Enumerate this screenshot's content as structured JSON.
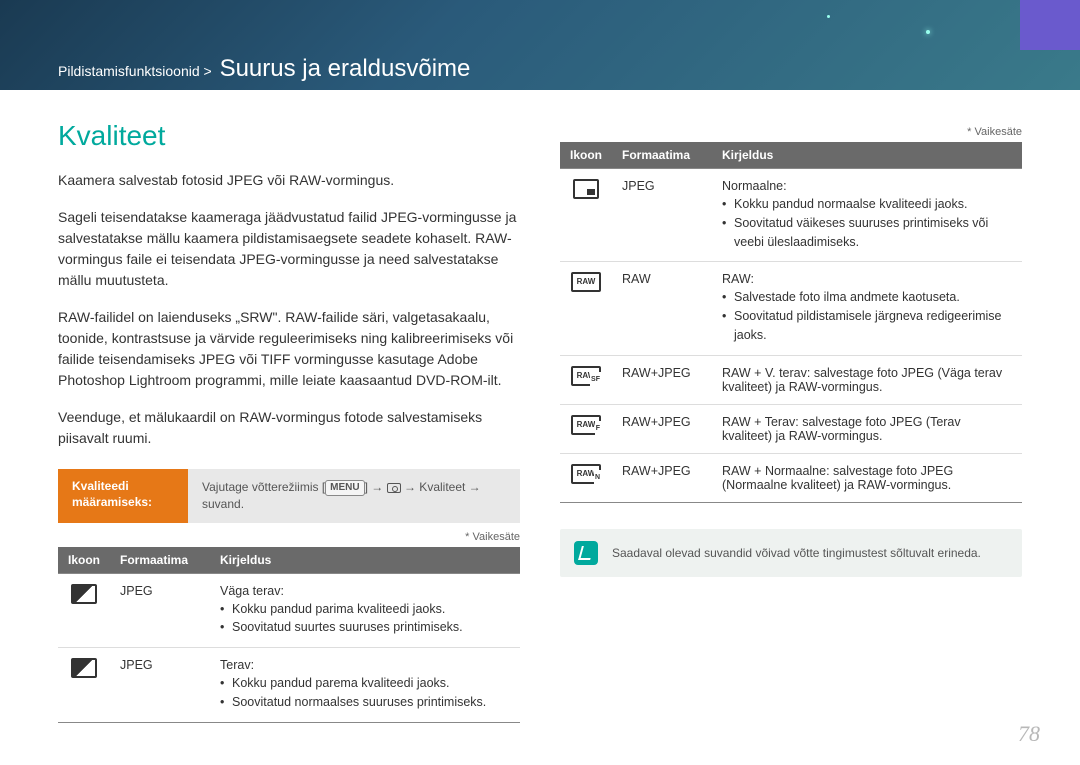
{
  "breadcrumb": {
    "prefix": "Pildistamisfunktsioonid >",
    "title": "Suurus ja eraldusvõime"
  },
  "section_title": "Kvaliteet",
  "paragraphs": [
    "Kaamera salvestab fotosid JPEG või RAW-vormingus.",
    "Sageli teisendatakse kaameraga jäädvustatud failid JPEG-vormingusse ja salvestatakse mällu kaamera pildistamisaegsete seadete kohaselt. RAW-vormingus faile ei teisendata JPEG-vormingusse ja need salvestatakse mällu muutusteta.",
    "RAW-failidel on laienduseks „SRW\". RAW-failide säri, valgetasakaalu, toonide, kontrastsuse ja värvide reguleerimiseks ning kalibreerimiseks või failide teisendamiseks JPEG või TIFF vormingusse kasutage Adobe Photoshop Lightroom programmi, mille leiate kaasaantud DVD-ROM-ilt.",
    "Veenduge, et mälukaardil on RAW-vormingus fotode salvestamiseks piisavalt ruumi."
  ],
  "instruction": {
    "label_line1": "Kvaliteedi",
    "label_line2": "määramiseks:",
    "body_pre": "Vajutage võtterežiimis [",
    "menu": "MENU",
    "body_post": "] → ",
    "body_end": " → Kvaliteet → suvand."
  },
  "default_note": "* Vaikesäte",
  "table_headers": {
    "c1": "Ikoon",
    "c2": "Formaatima",
    "c3": "Kirjeldus"
  },
  "left_rows": [
    {
      "fmt": "JPEG",
      "head": "Väga terav:",
      "items": [
        "Kokku pandud parima kvaliteedi jaoks.",
        "Soovitatud suurtes suuruses printimiseks."
      ]
    },
    {
      "fmt": "JPEG",
      "head": "Terav:",
      "items": [
        "Kokku pandud parema kvaliteedi jaoks.",
        "Soovitatud normaalses suuruses printimiseks."
      ]
    }
  ],
  "right_rows": [
    {
      "fmt": "JPEG",
      "head": "Normaalne:",
      "items": [
        "Kokku pandud normaalse kvaliteedi jaoks.",
        "Soovitatud väikeses suuruses printimiseks või veebi üleslaadimiseks."
      ]
    },
    {
      "fmt": "RAW",
      "head": "RAW:",
      "items": [
        "Salvestade foto ilma andmete kaotuseta.",
        "Soovitatud pildistamisele järgneva redigeerimise jaoks."
      ]
    },
    {
      "fmt": "RAW+JPEG",
      "head": "RAW + V. terav: ",
      "tail": "salvestage foto JPEG (Väga terav kvaliteet) ja RAW-vormingus."
    },
    {
      "fmt": "RAW+JPEG",
      "head": "RAW + Terav: ",
      "tail": "salvestage foto JPEG (Terav kvaliteet) ja RAW-vormingus."
    },
    {
      "fmt": "RAW+JPEG",
      "head": "RAW + Normaalne: ",
      "tail": "salvestage foto JPEG (Normaalne kvaliteet) ja RAW-vormingus."
    }
  ],
  "note_text": "Saadaval olevad suvandid võivad võtte tingimustest sõltuvalt erineda.",
  "page_number": "78",
  "colors": {
    "accent": "#00a99d",
    "orange": "#e67817",
    "header_bg": "#6a6a6a"
  }
}
